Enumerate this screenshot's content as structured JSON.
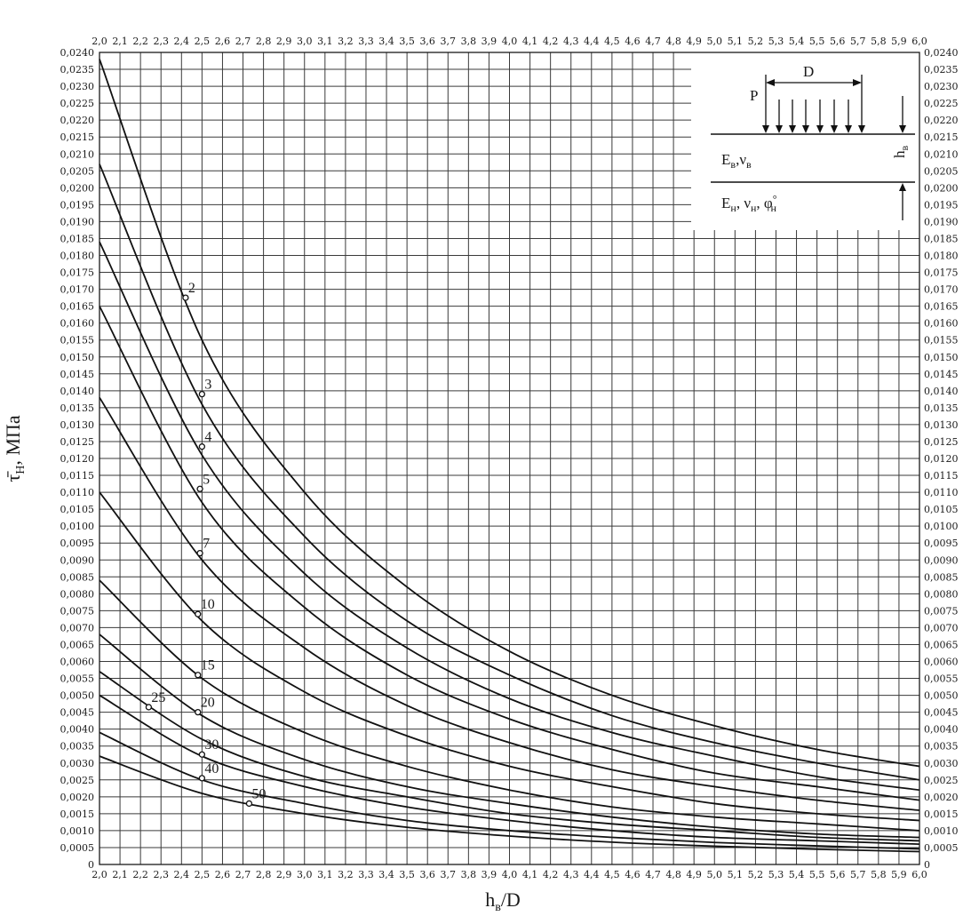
{
  "chart_data": {
    "type": "line",
    "xlabel": {
      "main": "h",
      "sub": "в",
      "tail": "/D"
    },
    "ylabel": {
      "main": "τ̄",
      "sub": "Н",
      "tail": ", МПа"
    },
    "xlim": [
      2.0,
      6.0
    ],
    "ylim": [
      0,
      0.024
    ],
    "x_ticks": [
      "2,0",
      "2,1",
      "2,2",
      "2,3",
      "2,4",
      "2,5",
      "2,6",
      "2,7",
      "2,8",
      "2,9",
      "3,0",
      "3,1",
      "3,2",
      "3,3",
      "3,4",
      "3,5",
      "3,6",
      "3,7",
      "3,8",
      "3,9",
      "4,0",
      "4,1",
      "4,2",
      "4,3",
      "4,4",
      "4,5",
      "4,6",
      "4,7",
      "4,8",
      "4,9",
      "5,0",
      "5,1",
      "5,2",
      "5,3",
      "5,4",
      "5,5",
      "5,6",
      "5,7",
      "5,8",
      "5,9",
      "6,0"
    ],
    "y_ticks": [
      "0",
      "0,0005",
      "0,0010",
      "0,0015",
      "0,0020",
      "0,0025",
      "0,0030",
      "0,0035",
      "0,0040",
      "0,0045",
      "0,0050",
      "0,0055",
      "0,0060",
      "0,0065",
      "0,0070",
      "0,0075",
      "0,0080",
      "0,0085",
      "0,0090",
      "0,0095",
      "0,0100",
      "0,0105",
      "0,0110",
      "0,0115",
      "0,0120",
      "0,0125",
      "0,0130",
      "0,0135",
      "0,0140",
      "0,0145",
      "0,0150",
      "0,0155",
      "0,0160",
      "0,0165",
      "0,0170",
      "0,0175",
      "0,0180",
      "0,0185",
      "0,0190",
      "0,0195",
      "0,0200",
      "0,0205",
      "0,0210",
      "0,0215",
      "0,0220",
      "0,0225",
      "0,0230",
      "0,0235",
      "0,0240"
    ],
    "grid": true,
    "series": [
      {
        "name": "2",
        "x": [
          2.0,
          2.5,
          3.0,
          3.5,
          4.0,
          4.5,
          5.0,
          5.5,
          6.0
        ],
        "y": [
          0.0238,
          0.0155,
          0.011,
          0.0082,
          0.0063,
          0.005,
          0.0041,
          0.0034,
          0.0029
        ],
        "marker": [
          2.42,
          0.01675
        ]
      },
      {
        "name": "3",
        "x": [
          2.0,
          2.5,
          3.0,
          3.5,
          4.0,
          4.5,
          5.0,
          5.5,
          6.0
        ],
        "y": [
          0.0207,
          0.0136,
          0.0097,
          0.0072,
          0.0056,
          0.0044,
          0.0036,
          0.003,
          0.0025
        ],
        "marker": [
          2.5,
          0.0139
        ]
      },
      {
        "name": "4",
        "x": [
          2.0,
          2.5,
          3.0,
          3.5,
          4.0,
          4.5,
          5.0,
          5.5,
          6.0
        ],
        "y": [
          0.0184,
          0.0121,
          0.0086,
          0.0064,
          0.0049,
          0.0039,
          0.0032,
          0.0026,
          0.0022
        ],
        "marker": [
          2.5,
          0.01235
        ]
      },
      {
        "name": "5",
        "x": [
          2.0,
          2.5,
          3.0,
          3.5,
          4.0,
          4.5,
          5.0,
          5.5,
          6.0
        ],
        "y": [
          0.0165,
          0.0107,
          0.0076,
          0.0056,
          0.0043,
          0.0034,
          0.0027,
          0.0023,
          0.0019
        ],
        "marker": [
          2.49,
          0.0111
        ]
      },
      {
        "name": "7",
        "x": [
          2.0,
          2.5,
          3.0,
          3.5,
          4.0,
          4.5,
          5.0,
          5.5,
          6.0
        ],
        "y": [
          0.0138,
          0.009,
          0.0064,
          0.0047,
          0.0036,
          0.0028,
          0.0023,
          0.0019,
          0.0016
        ],
        "marker": [
          2.49,
          0.0092
        ]
      },
      {
        "name": "10",
        "x": [
          2.0,
          2.5,
          3.0,
          3.5,
          4.0,
          4.5,
          5.0,
          5.5,
          6.0
        ],
        "y": [
          0.011,
          0.0072,
          0.0051,
          0.0038,
          0.0029,
          0.0023,
          0.0018,
          0.0015,
          0.0013
        ],
        "marker": [
          2.48,
          0.0074
        ]
      },
      {
        "name": "15",
        "x": [
          2.0,
          2.5,
          3.0,
          3.5,
          4.0,
          4.5,
          5.0,
          5.5,
          6.0
        ],
        "y": [
          0.0084,
          0.0055,
          0.0039,
          0.0029,
          0.0022,
          0.0017,
          0.0014,
          0.0012,
          0.001
        ],
        "marker": [
          2.48,
          0.0056
        ]
      },
      {
        "name": "20",
        "x": [
          2.0,
          2.5,
          3.0,
          3.5,
          4.0,
          4.5,
          5.0,
          5.5,
          6.0
        ],
        "y": [
          0.0068,
          0.0044,
          0.0031,
          0.0023,
          0.0018,
          0.0014,
          0.0011,
          0.0009,
          0.0008
        ],
        "marker": [
          2.48,
          0.0045
        ]
      },
      {
        "name": "25",
        "x": [
          2.0,
          2.5,
          3.0,
          3.5,
          4.0,
          4.5,
          5.0,
          5.5,
          6.0
        ],
        "y": [
          0.0057,
          0.0037,
          0.0026,
          0.002,
          0.0015,
          0.0012,
          0.001,
          0.0008,
          0.0007
        ],
        "marker": [
          2.24,
          0.00465
        ]
      },
      {
        "name": "30",
        "x": [
          2.0,
          2.5,
          3.0,
          3.5,
          4.0,
          4.5,
          5.0,
          5.5,
          6.0
        ],
        "y": [
          0.005,
          0.0032,
          0.0023,
          0.0017,
          0.0013,
          0.001,
          0.0008,
          0.0007,
          0.0006
        ],
        "marker": [
          2.5,
          0.00325
        ]
      },
      {
        "name": "40",
        "x": [
          2.0,
          2.5,
          3.0,
          3.5,
          4.0,
          4.5,
          5.0,
          5.5,
          6.0
        ],
        "y": [
          0.0039,
          0.0025,
          0.0018,
          0.0013,
          0.001,
          0.0008,
          0.00065,
          0.00055,
          0.00046
        ],
        "marker": [
          2.5,
          0.00255
        ]
      },
      {
        "name": "50",
        "x": [
          2.0,
          2.5,
          3.0,
          3.5,
          4.0,
          4.5,
          5.0,
          5.5,
          6.0
        ],
        "y": [
          0.0032,
          0.0021,
          0.0015,
          0.0011,
          0.00084,
          0.00066,
          0.00054,
          0.00045,
          0.00038
        ],
        "marker": [
          2.73,
          0.0018
        ]
      }
    ],
    "inset": {
      "label_P": "P",
      "label_D": "D",
      "upper_layer": {
        "main": "E",
        "sub": "в",
        "mid": ",ν",
        "sub2": "в"
      },
      "lower_layer": {
        "main": "E",
        "sub": "н",
        "mid": ", ν",
        "sub2": "н",
        "tail": ", φ",
        "sup": "°",
        "sub3": "н"
      },
      "thickness": {
        "main": "h",
        "sub": "в"
      }
    }
  }
}
